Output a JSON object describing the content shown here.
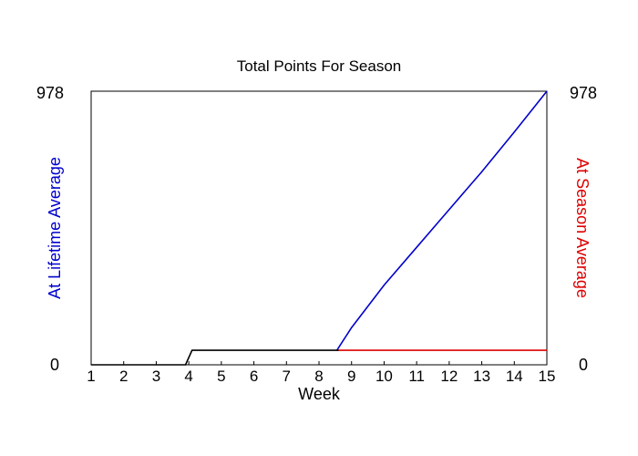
{
  "chart_data": {
    "type": "line",
    "title": "Total Points For Season",
    "xlabel": "Week",
    "ylabel_left": "At Lifetime Average",
    "ylabel_right": "At Season Average",
    "xlim": [
      1,
      15
    ],
    "ylim": [
      0,
      978
    ],
    "x_ticks": [
      "1",
      "2",
      "3",
      "4",
      "5",
      "6",
      "7",
      "8",
      "9",
      "10",
      "11",
      "12",
      "13",
      "14",
      "15"
    ],
    "y_tick_min": "0",
    "y_tick_max": "978",
    "grid": false,
    "colors": {
      "lifetime": "#0000cc",
      "season": "#dd0000",
      "actual": "#000000"
    },
    "series": [
      {
        "key": "lifetime",
        "color": "#0000cc",
        "x": [
          8.55,
          9,
          10,
          11,
          12,
          13,
          14,
          15
        ],
        "y": [
          52,
          133,
          285,
          420,
          555,
          690,
          832,
          978
        ]
      },
      {
        "key": "season",
        "color": "#dd0000",
        "x": [
          8.55,
          15
        ],
        "y": [
          52,
          52
        ]
      },
      {
        "key": "actual",
        "color": "#000000",
        "x": [
          1,
          3.9,
          4.1,
          8.6
        ],
        "y": [
          0,
          0,
          52,
          52
        ]
      }
    ]
  }
}
